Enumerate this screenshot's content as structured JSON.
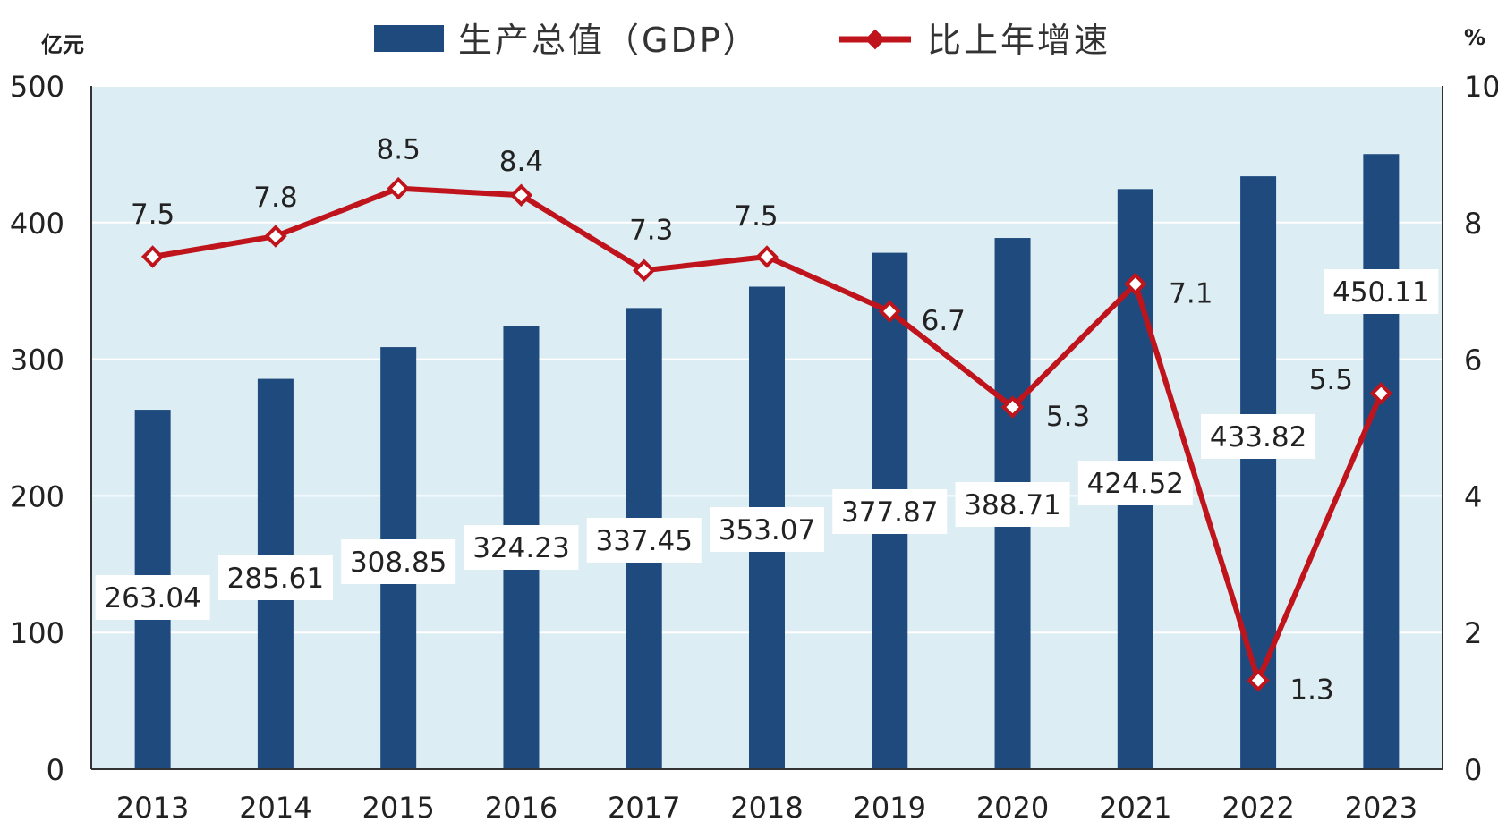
{
  "chart_data": {
    "type": "bar",
    "categories": [
      "2013",
      "2014",
      "2015",
      "2016",
      "2017",
      "2018",
      "2019",
      "2020",
      "2021",
      "2022",
      "2023"
    ],
    "series": [
      {
        "name": "生产总值（GDP）",
        "type": "bar",
        "axis": "left",
        "color": "#1f4a7e",
        "values": [
          263.04,
          285.61,
          308.85,
          324.23,
          337.45,
          353.07,
          377.87,
          388.71,
          424.52,
          433.82,
          450.11
        ]
      },
      {
        "name": "比上年增速",
        "type": "line",
        "axis": "right",
        "color": "#c0141c",
        "values": [
          7.5,
          7.8,
          8.5,
          8.4,
          7.3,
          7.5,
          6.7,
          5.3,
          7.1,
          1.3,
          5.5
        ]
      }
    ],
    "left_axis": {
      "unit": "亿元",
      "ylim": [
        0,
        500
      ],
      "ticks": [
        "0",
        "100",
        "200",
        "300",
        "400",
        "500"
      ]
    },
    "right_axis": {
      "unit": "%",
      "ylim": [
        0,
        10
      ],
      "ticks": [
        "0",
        "2",
        "4",
        "6",
        "8",
        "10"
      ]
    },
    "grid": true,
    "legend_position": "top-center",
    "plot_background": "#dcedf4"
  }
}
